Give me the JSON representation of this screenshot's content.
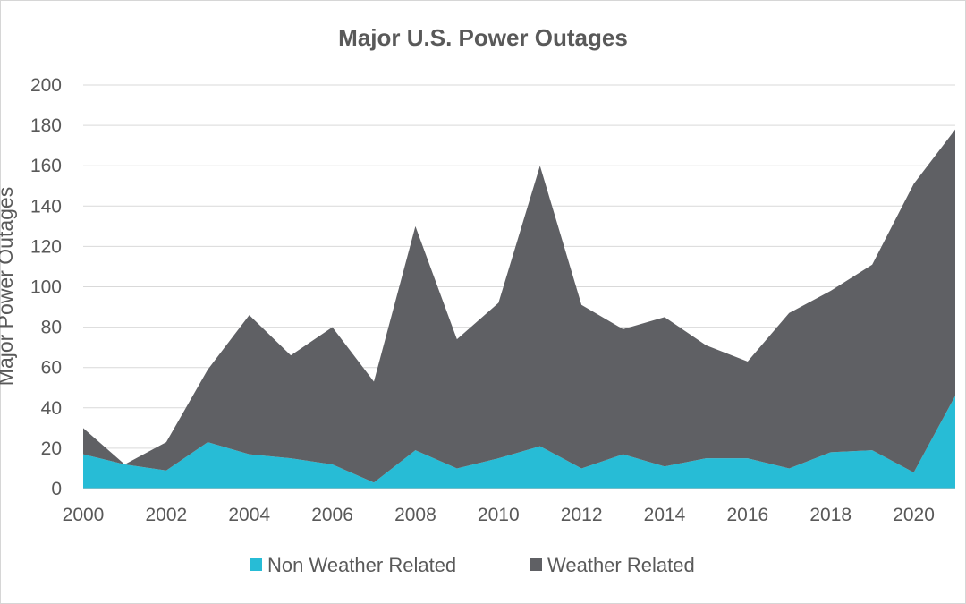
{
  "chart_data": {
    "type": "area",
    "stacked": true,
    "title": "Major U.S. Power Outages",
    "ylabel": "Major Power Outages",
    "xlabel": "",
    "x": [
      2000,
      2001,
      2002,
      2003,
      2004,
      2005,
      2006,
      2007,
      2008,
      2009,
      2010,
      2011,
      2012,
      2013,
      2014,
      2015,
      2016,
      2017,
      2018,
      2019,
      2020,
      2021
    ],
    "x_ticks": [
      "2000",
      "2002",
      "2004",
      "2006",
      "2008",
      "2010",
      "2012",
      "2014",
      "2016",
      "2018",
      "2020"
    ],
    "y_ticks": [
      "0",
      "20",
      "40",
      "60",
      "80",
      "100",
      "120",
      "140",
      "160",
      "180",
      "200"
    ],
    "ylim": [
      0,
      200
    ],
    "xlim": [
      2000,
      2021
    ],
    "grid": true,
    "legend_position": "bottom",
    "series": [
      {
        "name": "Non Weather Related",
        "color": "#27bcd6",
        "values": [
          17,
          12,
          9,
          23,
          17,
          15,
          12,
          3,
          19,
          10,
          15,
          21,
          10,
          17,
          11,
          15,
          15,
          10,
          18,
          19,
          8,
          46
        ]
      },
      {
        "name": "Weather Related",
        "color": "#5f6064",
        "values": [
          13,
          0,
          14,
          36,
          69,
          51,
          68,
          50,
          111,
          64,
          77,
          139,
          81,
          62,
          74,
          56,
          48,
          77,
          80,
          92,
          143,
          132
        ]
      }
    ]
  }
}
